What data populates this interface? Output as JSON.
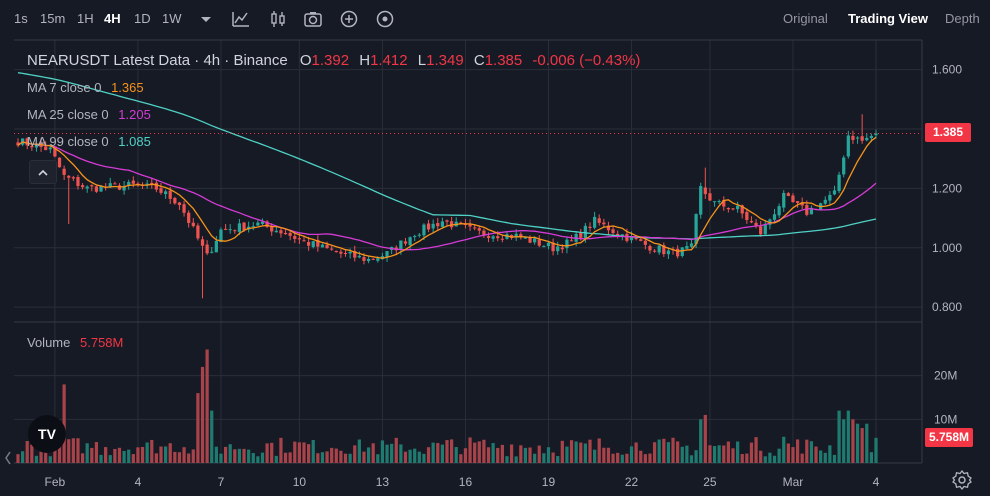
{
  "toolbar": {
    "timeframes": [
      "1s",
      "15m",
      "1H",
      "4H",
      "1D",
      "1W"
    ],
    "active_timeframe": "4H",
    "views": [
      "Original",
      "Trading View",
      "Depth"
    ],
    "active_view": "Trading View"
  },
  "legend": {
    "title": "NEARUSDT Latest Data · 4h · Binance",
    "o_label": "O",
    "o_value": "1.392",
    "h_label": "H",
    "h_value": "1.412",
    "l_label": "L",
    "l_value": "1.349",
    "c_label": "C",
    "c_value": "1.385",
    "change": "-0.006 (−0.43%)",
    "ma7": {
      "label": "MA 7 close 0",
      "value": "1.365",
      "color": "#f7931a"
    },
    "ma25": {
      "label": "MA 25 close 0",
      "value": "1.205",
      "color": "#d63bd6"
    },
    "ma99": {
      "label": "MA 99 close 0",
      "value": "1.085",
      "color": "#4fd1c5"
    },
    "volume_label": "Volume",
    "volume_value": "5.758M"
  },
  "price_tag": "1.385",
  "volume_tag": "5.758M",
  "logo_text": "TV",
  "chart_data": {
    "type": "candlestick",
    "title": "NEARUSDT Latest Data · 4h · Binance",
    "price_axis_ticks": [
      "1.600",
      "1.400",
      "1.200",
      "1.000",
      "0.800"
    ],
    "price_ticks_values": [
      1.6,
      1.4,
      1.2,
      1.0,
      0.8
    ],
    "price_ylim": [
      0.75,
      1.7
    ],
    "volume_axis_ticks": [
      "20M",
      "10M"
    ],
    "volume_ticks_values": [
      20,
      10
    ],
    "volume_ylim": [
      0,
      30
    ],
    "x_tick_labels": [
      "Feb",
      "4",
      "7",
      "10",
      "13",
      "16",
      "19",
      "22",
      "25",
      "Mar",
      "4"
    ],
    "last_price": 1.385,
    "last_volume": 5.758,
    "colors": {
      "up": "#26a69a",
      "down": "#ef5350",
      "up_vol": "#1f7a6f",
      "down_vol": "#a8434a",
      "grid": "#2a2e39"
    },
    "anchors": [
      [
        0,
        1.36
      ],
      [
        7,
        1.33
      ],
      [
        10,
        1.24
      ],
      [
        15,
        1.2
      ],
      [
        25,
        1.21
      ],
      [
        30,
        1.2
      ],
      [
        35,
        1.15
      ],
      [
        38,
        1.06
      ],
      [
        41,
        0.97
      ],
      [
        44,
        1.06
      ],
      [
        52,
        1.08
      ],
      [
        58,
        1.05
      ],
      [
        62,
        1.02
      ],
      [
        70,
        0.98
      ],
      [
        76,
        0.96
      ],
      [
        80,
        0.98
      ],
      [
        86,
        1.05
      ],
      [
        92,
        1.09
      ],
      [
        100,
        1.05
      ],
      [
        108,
        1.04
      ],
      [
        116,
        1.0
      ],
      [
        120,
        1.02
      ],
      [
        125,
        1.09
      ],
      [
        130,
        1.05
      ],
      [
        136,
        1.01
      ],
      [
        142,
        0.98
      ],
      [
        146,
        1.0
      ],
      [
        148,
        1.2
      ],
      [
        151,
        1.15
      ],
      [
        156,
        1.13
      ],
      [
        161,
        1.05
      ],
      [
        166,
        1.17
      ],
      [
        171,
        1.12
      ],
      [
        177,
        1.18
      ],
      [
        180,
        1.38
      ],
      [
        183,
        1.36
      ],
      [
        186,
        1.385
      ]
    ],
    "spikes": [
      {
        "index": 11,
        "low": 1.08
      },
      {
        "index": 40,
        "low": 0.83
      },
      {
        "index": 149,
        "high": 1.27
      },
      {
        "index": 183,
        "high": 1.45
      }
    ],
    "volume_events": [
      [
        10,
        18
      ],
      [
        39,
        16
      ],
      [
        40,
        22
      ],
      [
        41,
        26
      ],
      [
        42,
        12
      ],
      [
        148,
        10
      ],
      [
        149,
        11
      ],
      [
        166,
        6
      ],
      [
        178,
        12
      ],
      [
        179,
        10
      ],
      [
        180,
        12
      ],
      [
        181,
        10
      ],
      [
        182,
        9
      ],
      [
        183,
        8
      ],
      [
        184,
        9
      ],
      [
        186,
        5.758
      ]
    ],
    "ma_final": {
      "ma7": 1.365,
      "ma25": 1.205,
      "ma99": 1.085
    }
  }
}
